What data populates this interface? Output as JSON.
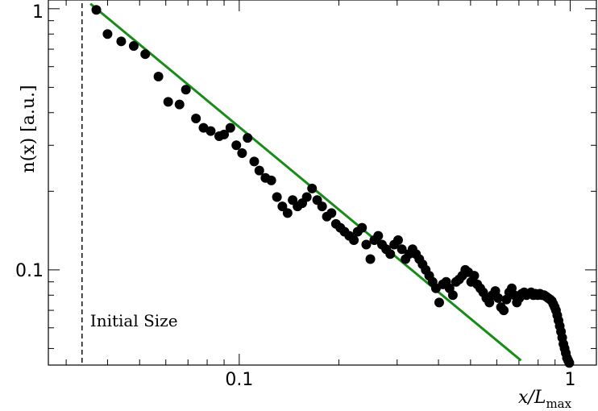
{
  "chart_data": {
    "type": "scatter",
    "xscale": "log",
    "yscale": "log",
    "xlim": [
      0.0265,
      1.2
    ],
    "ylim": [
      0.0432,
      1.08
    ],
    "xlabel": "x/L",
    "xlabel_sub": "max",
    "ylabel": "n(x) [a.u.]",
    "x_ticks": [
      {
        "value": 0.1,
        "label": "0.1"
      },
      {
        "value": 1,
        "label": "1"
      }
    ],
    "y_ticks": [
      {
        "value": 0.1,
        "label": "0.1"
      },
      {
        "value": 1,
        "label": "1"
      }
    ],
    "grid": false,
    "marker_color": "#000000",
    "fit_color": "#1a8a1a",
    "fit_line": {
      "x": [
        0.0355,
        0.71
      ],
      "y": [
        1.045,
        0.045
      ]
    },
    "vline": {
      "x": 0.0335
    },
    "annotation": "Initial Size",
    "points": [
      [
        0.037,
        0.99
      ],
      [
        0.04,
        0.8
      ],
      [
        0.044,
        0.75
      ],
      [
        0.048,
        0.72
      ],
      [
        0.052,
        0.67
      ],
      [
        0.057,
        0.55
      ],
      [
        0.061,
        0.44
      ],
      [
        0.066,
        0.43
      ],
      [
        0.069,
        0.49
      ],
      [
        0.074,
        0.38
      ],
      [
        0.078,
        0.35
      ],
      [
        0.082,
        0.34
      ],
      [
        0.087,
        0.325
      ],
      [
        0.09,
        0.33
      ],
      [
        0.094,
        0.35
      ],
      [
        0.098,
        0.3
      ],
      [
        0.102,
        0.28
      ],
      [
        0.106,
        0.32
      ],
      [
        0.111,
        0.26
      ],
      [
        0.115,
        0.24
      ],
      [
        0.12,
        0.225
      ],
      [
        0.125,
        0.22
      ],
      [
        0.13,
        0.19
      ],
      [
        0.135,
        0.175
      ],
      [
        0.14,
        0.165
      ],
      [
        0.145,
        0.185
      ],
      [
        0.15,
        0.175
      ],
      [
        0.155,
        0.18
      ],
      [
        0.16,
        0.19
      ],
      [
        0.166,
        0.205
      ],
      [
        0.172,
        0.185
      ],
      [
        0.178,
        0.175
      ],
      [
        0.184,
        0.16
      ],
      [
        0.19,
        0.165
      ],
      [
        0.196,
        0.15
      ],
      [
        0.202,
        0.145
      ],
      [
        0.208,
        0.14
      ],
      [
        0.215,
        0.135
      ],
      [
        0.222,
        0.13
      ],
      [
        0.228,
        0.14
      ],
      [
        0.235,
        0.145
      ],
      [
        0.242,
        0.125
      ],
      [
        0.249,
        0.11
      ],
      [
        0.256,
        0.13
      ],
      [
        0.263,
        0.135
      ],
      [
        0.27,
        0.125
      ],
      [
        0.278,
        0.12
      ],
      [
        0.286,
        0.115
      ],
      [
        0.294,
        0.125
      ],
      [
        0.302,
        0.13
      ],
      [
        0.31,
        0.12
      ],
      [
        0.318,
        0.11
      ],
      [
        0.326,
        0.115
      ],
      [
        0.334,
        0.12
      ],
      [
        0.342,
        0.115
      ],
      [
        0.35,
        0.11
      ],
      [
        0.358,
        0.105
      ],
      [
        0.366,
        0.1
      ],
      [
        0.375,
        0.095
      ],
      [
        0.384,
        0.09
      ],
      [
        0.393,
        0.085
      ],
      [
        0.402,
        0.075
      ],
      [
        0.412,
        0.088
      ],
      [
        0.422,
        0.09
      ],
      [
        0.432,
        0.085
      ],
      [
        0.442,
        0.08
      ],
      [
        0.452,
        0.09
      ],
      [
        0.462,
        0.092
      ],
      [
        0.472,
        0.095
      ],
      [
        0.482,
        0.1
      ],
      [
        0.492,
        0.098
      ],
      [
        0.502,
        0.09
      ],
      [
        0.513,
        0.095
      ],
      [
        0.524,
        0.088
      ],
      [
        0.535,
        0.085
      ],
      [
        0.546,
        0.082
      ],
      [
        0.558,
        0.078
      ],
      [
        0.57,
        0.075
      ],
      [
        0.582,
        0.08
      ],
      [
        0.594,
        0.083
      ],
      [
        0.606,
        0.078
      ],
      [
        0.618,
        0.072
      ],
      [
        0.63,
        0.07
      ],
      [
        0.642,
        0.077
      ],
      [
        0.654,
        0.082
      ],
      [
        0.666,
        0.085
      ],
      [
        0.678,
        0.08
      ],
      [
        0.69,
        0.075
      ],
      [
        0.702,
        0.078
      ],
      [
        0.714,
        0.081
      ],
      [
        0.726,
        0.082
      ],
      [
        0.738,
        0.08
      ],
      [
        0.75,
        0.081
      ],
      [
        0.762,
        0.082
      ],
      [
        0.774,
        0.08
      ],
      [
        0.786,
        0.081
      ],
      [
        0.798,
        0.08
      ],
      [
        0.81,
        0.081
      ],
      [
        0.822,
        0.08
      ],
      [
        0.834,
        0.08
      ],
      [
        0.846,
        0.079
      ],
      [
        0.858,
        0.078
      ],
      [
        0.87,
        0.077
      ],
      [
        0.88,
        0.076
      ],
      [
        0.889,
        0.074
      ],
      [
        0.898,
        0.072
      ],
      [
        0.906,
        0.07
      ],
      [
        0.914,
        0.067
      ],
      [
        0.922,
        0.064
      ],
      [
        0.93,
        0.061
      ],
      [
        0.938,
        0.058
      ],
      [
        0.946,
        0.055
      ],
      [
        0.954,
        0.052
      ],
      [
        0.962,
        0.05
      ],
      [
        0.97,
        0.048
      ],
      [
        0.978,
        0.046
      ],
      [
        0.986,
        0.045
      ],
      [
        0.994,
        0.044
      ]
    ]
  }
}
